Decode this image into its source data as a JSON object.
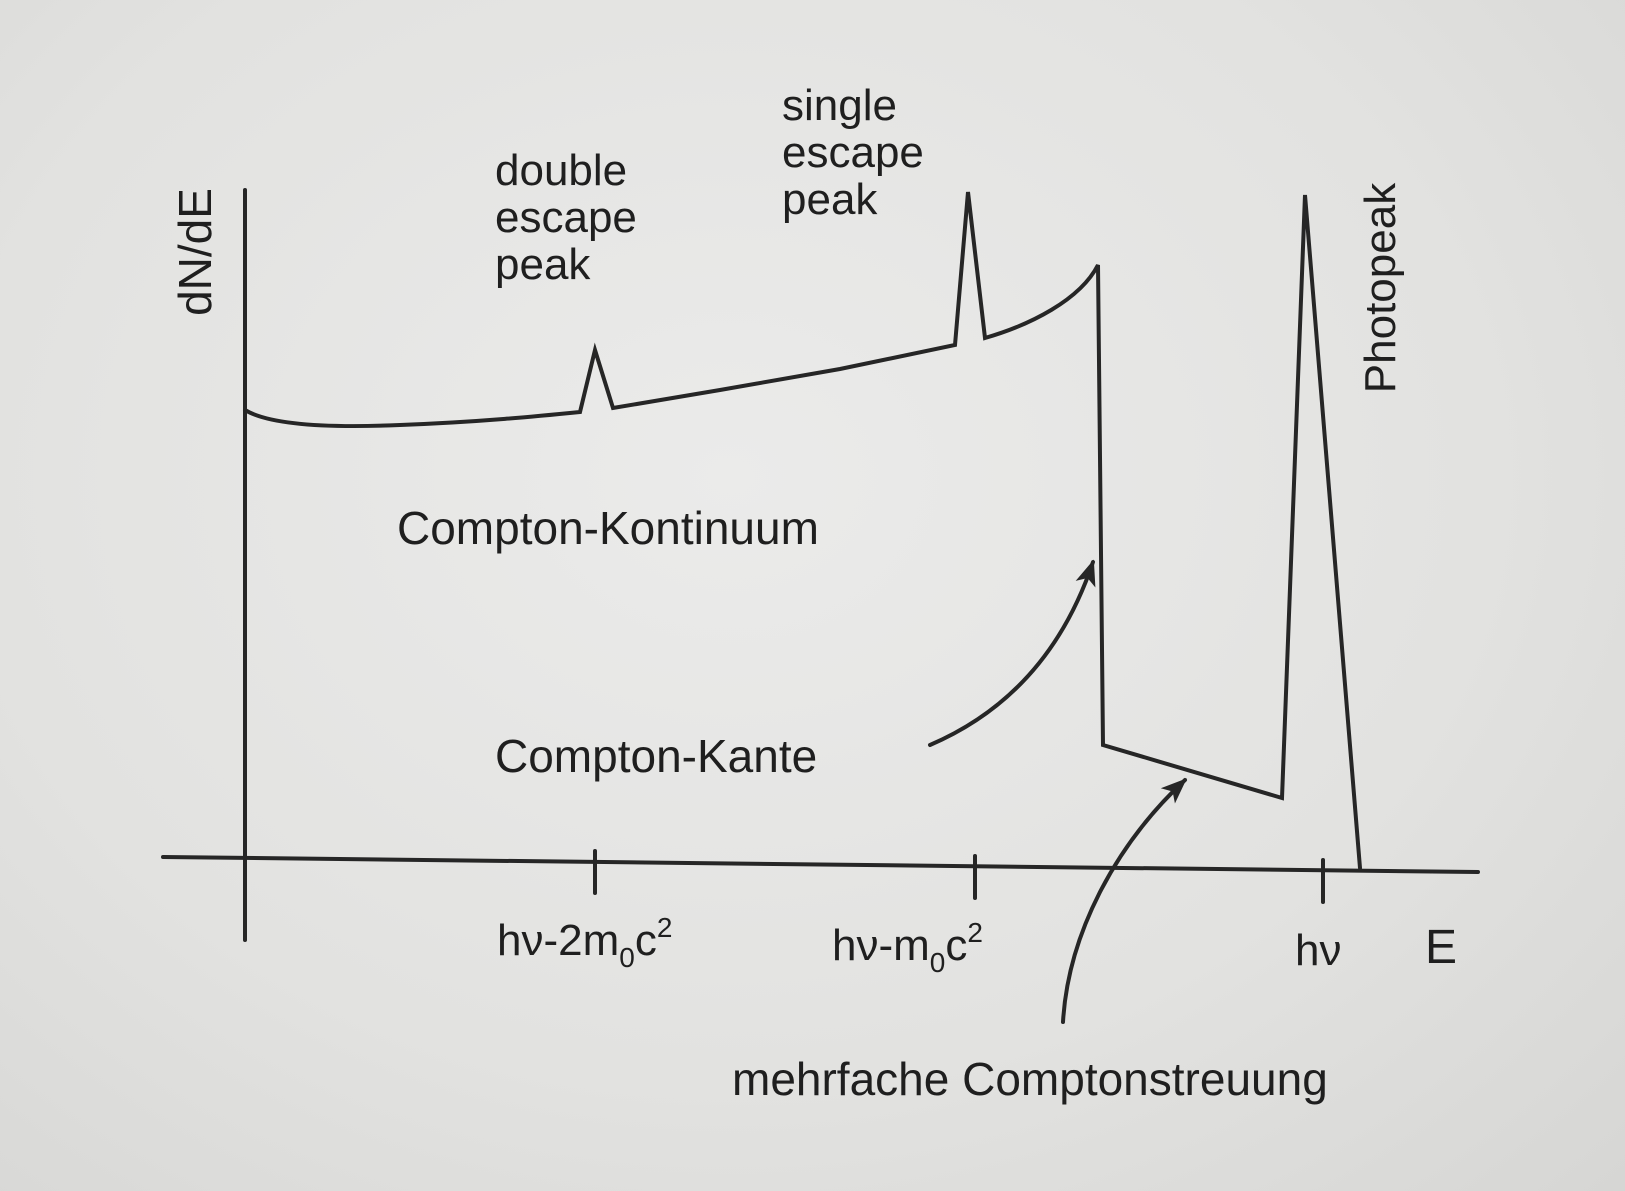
{
  "axes": {
    "y_label": "dN/dE",
    "x_label": "E"
  },
  "ticks": [
    {
      "main": "hν-2m",
      "sub": "0",
      "tail": "c",
      "sup": "2"
    },
    {
      "main": "hν-m",
      "sub": "0",
      "tail": "c",
      "sup": "2"
    },
    {
      "main": "hν"
    }
  ],
  "labels": {
    "double_escape": [
      "double",
      "escape",
      "peak"
    ],
    "single_escape": [
      "single",
      "escape",
      "peak"
    ],
    "photopeak": "Photopeak",
    "compton_continuum": "Compton-Kontinuum",
    "compton_edge": "Compton-Kante",
    "multiple_compton": "mehrfache Comptonstreuung"
  },
  "colors": {
    "ink": "#262626",
    "paper": "#e4e4e2"
  }
}
